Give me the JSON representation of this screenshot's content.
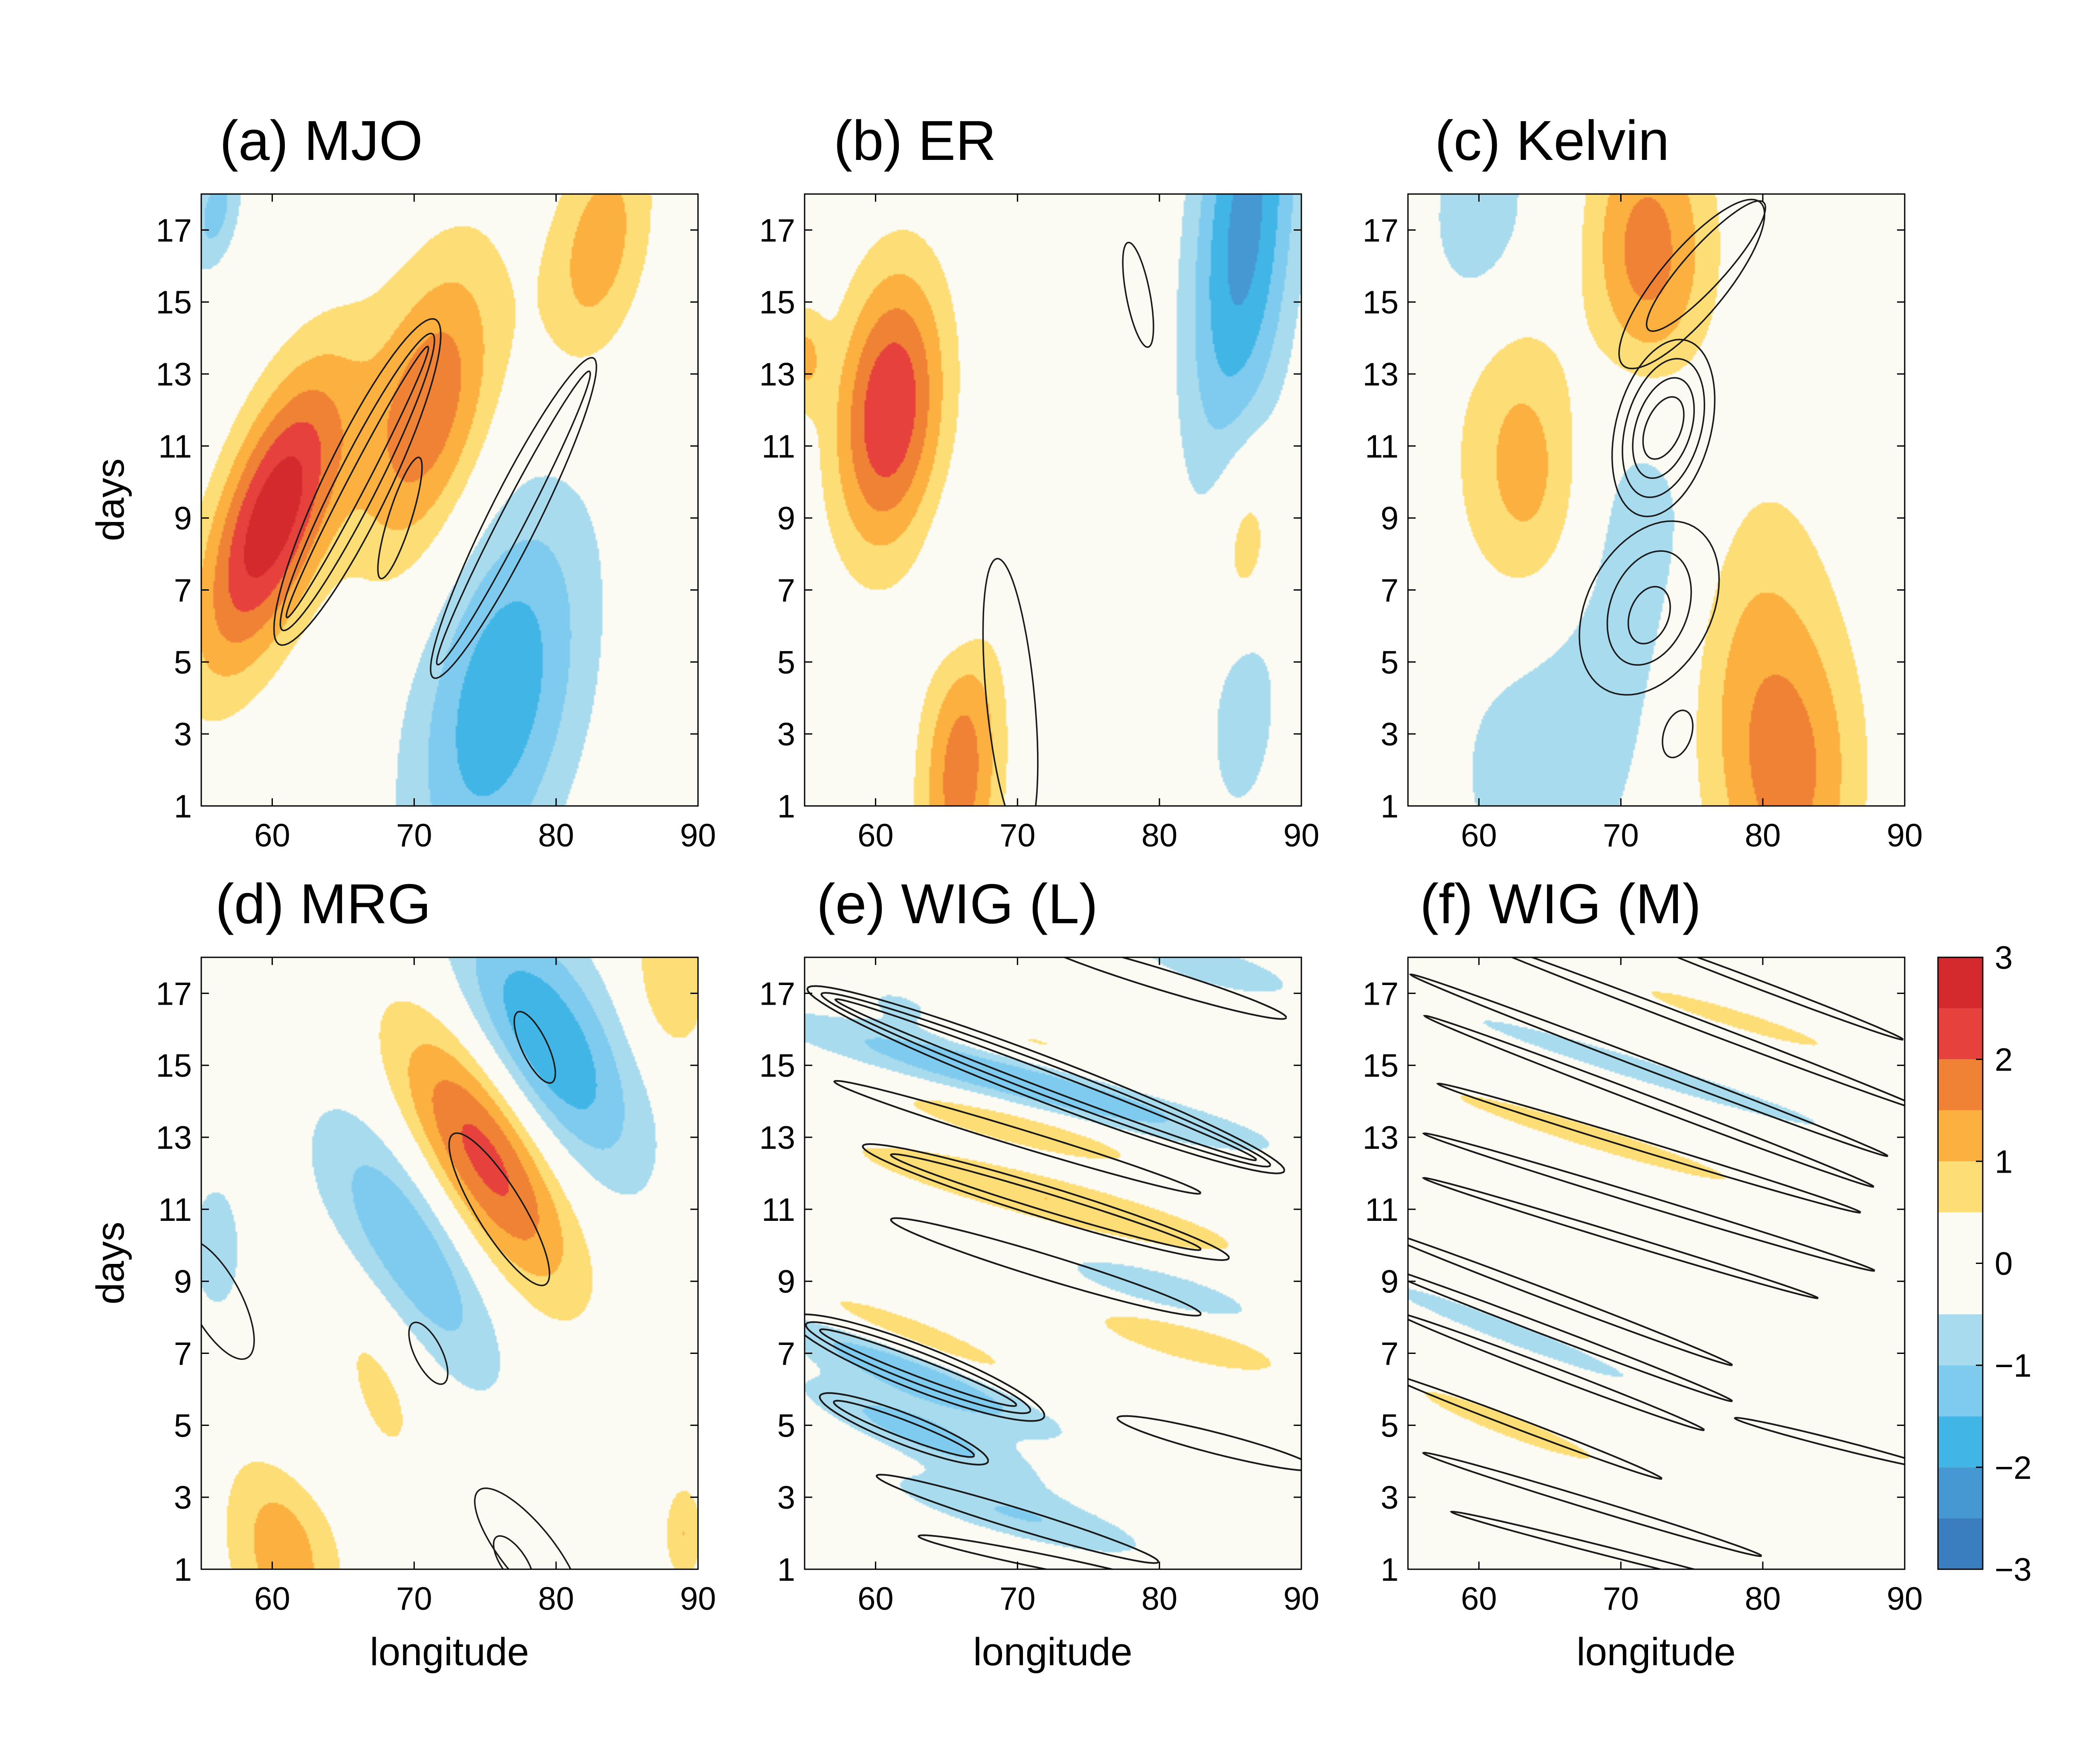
{
  "colorbar": {
    "ticks": [
      "3",
      "2",
      "1",
      "0",
      "−1",
      "−2",
      "−3"
    ],
    "levels": [
      -3,
      -2.5,
      -2,
      -1.5,
      -1,
      -0.5,
      0.5,
      1,
      1.5,
      2,
      2.5,
      3
    ],
    "colors": [
      "#3a7ebf",
      "#4598d2",
      "#41b6e6",
      "#7fcbef",
      "#a9dbee",
      "#fcfbf3",
      "#fddd76",
      "#fbb040",
      "#f08235",
      "#e6413d",
      "#d42a2e"
    ]
  },
  "chart_data": [
    {
      "type": "heatmap",
      "title": "(a) MJO",
      "xlabel": "",
      "ylabel": "days",
      "xlim": [
        55,
        90
      ],
      "ylim": [
        1,
        18
      ],
      "xticks": [
        "60",
        "70",
        "80",
        "90"
      ],
      "yticks": [
        "1",
        "3",
        "5",
        "7",
        "9",
        "11",
        "13",
        "15",
        "17"
      ],
      "field": {
        "blobs": [
          {
            "lon": 60,
            "day": 9,
            "amp": 2.9,
            "along": 8.5,
            "across": 4.0,
            "slope": 0.75
          },
          {
            "lon": 71,
            "day": 12,
            "amp": 1.9,
            "along": 8,
            "across": 5.0,
            "slope": 0.75
          },
          {
            "lon": 83,
            "day": 16.5,
            "amp": 1.3,
            "along": 6,
            "across": 4.0,
            "slope": 0.75
          },
          {
            "lon": 76,
            "day": 4,
            "amp": -1.9,
            "along": 10,
            "across": 6.5,
            "slope": 0.75
          },
          {
            "lon": 56,
            "day": 17.5,
            "amp": -1.2,
            "along": 3,
            "across": 2.0,
            "slope": 0.75
          }
        ],
        "contours": [
          {
            "lon": 66,
            "day": 10,
            "along": 12.5,
            "across": 0.9,
            "slope": 0.75
          },
          {
            "lon": 66,
            "day": 10,
            "along": 13.5,
            "across": 2.0,
            "slope": 0.75
          },
          {
            "lon": 66,
            "day": 10,
            "along": 14.5,
            "across": 3.2,
            "slope": 0.75
          },
          {
            "lon": 69,
            "day": 9,
            "along": 4.4,
            "across": 1.3,
            "slope": 1.1
          },
          {
            "lon": 77,
            "day": 9,
            "along": 13.5,
            "across": 1.2,
            "slope": 0.75
          },
          {
            "lon": 77,
            "day": 9,
            "along": 14.5,
            "across": 2.4,
            "slope": 0.75
          }
        ]
      }
    },
    {
      "type": "heatmap",
      "title": "(b) ER",
      "xlabel": "",
      "ylabel": "",
      "xlim": [
        55,
        90
      ],
      "ylim": [
        1,
        18
      ],
      "xticks": [
        "60",
        "70",
        "80",
        "90"
      ],
      "yticks": [
        "1",
        "3",
        "5",
        "7",
        "9",
        "11",
        "13",
        "15",
        "17"
      ],
      "field": {
        "blobs": [
          {
            "lon": 61,
            "day": 12,
            "amp": 2.5,
            "along": 5,
            "across": 6.0,
            "slope": -0.9
          },
          {
            "lon": 66,
            "day": 2,
            "amp": 1.8,
            "along": 4,
            "across": 6.0,
            "slope": -0.2
          },
          {
            "lon": 66,
            "day": 7,
            "amp": -0.6,
            "along": 3,
            "across": 4.0,
            "slope": -0.8
          },
          {
            "lon": 86,
            "day": 17,
            "amp": -2.2,
            "along": 5,
            "across": 10.0,
            "slope": -0.3
          },
          {
            "lon": 86,
            "day": 8.5,
            "amp": 1.0,
            "along": 3,
            "across": 4.0,
            "slope": -0.3
          },
          {
            "lon": 86,
            "day": 3.5,
            "amp": -1.0,
            "along": 3,
            "across": 4.0,
            "slope": -0.5
          },
          {
            "lon": 55,
            "day": 13.5,
            "amp": 1.0,
            "along": 2,
            "across": 2.0,
            "slope": -0.9
          }
        ],
        "contours": [
          {
            "lon": 78.5,
            "day": 15.2,
            "along": 3.3,
            "across": 1.5,
            "slope": -1.6
          },
          {
            "lon": 69.5,
            "day": 4,
            "along": 8,
            "across": 3.3,
            "slope": -3.5
          }
        ]
      }
    },
    {
      "type": "heatmap",
      "title": "(c) Kelvin",
      "xlabel": "",
      "ylabel": "",
      "xlim": [
        55,
        90
      ],
      "ylim": [
        1,
        18
      ],
      "xticks": [
        "60",
        "70",
        "80",
        "90"
      ],
      "yticks": [
        "1",
        "3",
        "5",
        "7",
        "9",
        "11",
        "13",
        "15",
        "17"
      ],
      "field": {
        "blobs": [
          {
            "lon": 71,
            "day": 15.8,
            "amp": 2.5,
            "along": 7,
            "across": 6.0,
            "slope": 0.2
          },
          {
            "lon": 68,
            "day": 13.5,
            "amp": -1.9,
            "along": 7,
            "across": 7.0,
            "slope": 0.2
          },
          {
            "lon": 65,
            "day": 10.8,
            "amp": 2.0,
            "along": 8,
            "across": 7.0,
            "slope": 0.25
          },
          {
            "lon": 72,
            "day": 8.3,
            "amp": -1.0,
            "along": 8,
            "across": 7.0,
            "slope": 0.25
          },
          {
            "lon": 78,
            "day": 6,
            "amp": 1.0,
            "along": 9,
            "across": 7.0,
            "slope": 0.2
          },
          {
            "lon": 65,
            "day": 3,
            "amp": -1.0,
            "along": 10,
            "across": 7.0,
            "slope": 0.15
          },
          {
            "lon": 82,
            "day": 1.5,
            "amp": 1.5,
            "along": 7,
            "across": 6.0,
            "slope": 0.15
          },
          {
            "lon": 60,
            "day": 17.4,
            "amp": -1.0,
            "along": 5,
            "across": 4.0,
            "slope": 0.2
          }
        ],
        "contours": [
          {
            "lon": 75,
            "day": 15.5,
            "along": 11,
            "across": 2.5,
            "slope": 0.4
          },
          {
            "lon": 76,
            "day": 16,
            "along": 9,
            "across": 1.5,
            "slope": 0.4
          },
          {
            "lon": 73,
            "day": 11.5,
            "along": 3,
            "across": 1.5,
            "slope": 0.35
          },
          {
            "lon": 73,
            "day": 11.5,
            "along": 4.5,
            "across": 2.5,
            "slope": 0.35
          },
          {
            "lon": 73,
            "day": 11.5,
            "along": 6,
            "across": 3.5,
            "slope": 0.35
          },
          {
            "lon": 73,
            "day": 11.5,
            "along": 7.5,
            "across": 4.5,
            "slope": 0.35
          },
          {
            "lon": 72,
            "day": 6.3,
            "along": 3,
            "across": 1.5,
            "slope": 0.2
          },
          {
            "lon": 72,
            "day": 6.5,
            "along": 6,
            "across": 3.0,
            "slope": 0.2
          },
          {
            "lon": 72,
            "day": 6.5,
            "along": 10,
            "across": 4.5,
            "slope": 0.2
          },
          {
            "lon": 74,
            "day": 3,
            "along": 2.2,
            "across": 1.2,
            "slope": 0.3
          }
        ]
      }
    },
    {
      "type": "heatmap",
      "title": "(d) MRG",
      "xlabel": "longitude",
      "ylabel": "days",
      "xlim": [
        55,
        90
      ],
      "ylim": [
        1,
        18
      ],
      "xticks": [
        "60",
        "70",
        "80",
        "90"
      ],
      "yticks": [
        "1",
        "3",
        "5",
        "7",
        "9",
        "11",
        "13",
        "15",
        "17"
      ],
      "field": {
        "blobs": [
          {
            "lon": 75,
            "day": 12.5,
            "amp": 2.8,
            "along": 10,
            "across": 4.5,
            "slope": -0.4
          },
          {
            "lon": 79,
            "day": 15.3,
            "amp": -2.3,
            "along": 10,
            "across": 4.5,
            "slope": -0.4
          },
          {
            "lon": 70,
            "day": 10,
            "amp": -2.0,
            "along": 10,
            "across": 4.5,
            "slope": -0.4
          },
          {
            "lon": 67,
            "day": 7,
            "amp": 1.0,
            "along": 8,
            "across": 4.5,
            "slope": -0.4
          },
          {
            "lon": 62,
            "day": 5,
            "amp": -1.0,
            "along": 6,
            "across": 4.5,
            "slope": -0.4
          },
          {
            "lon": 61,
            "day": 2,
            "amp": 1.6,
            "along": 6,
            "across": 4.5,
            "slope": -0.35
          },
          {
            "lon": 88,
            "day": 17.3,
            "amp": 1.0,
            "along": 4,
            "across": 3.0,
            "slope": -0.3
          },
          {
            "lon": 56,
            "day": 10,
            "amp": -0.8,
            "along": 3,
            "across": 3.0,
            "slope": -0.4
          },
          {
            "lon": 89,
            "day": 2,
            "amp": 1.0,
            "along": 2,
            "across": 2.0,
            "slope": 0
          }
        ],
        "contours": [
          {
            "lon": 78.5,
            "day": 15.5,
            "along": 3.3,
            "across": 1.2,
            "slope": -0.6
          },
          {
            "lon": 76,
            "day": 11,
            "along": 8,
            "across": 2.0,
            "slope": -0.55
          },
          {
            "lon": 71,
            "day": 7,
            "along": 3,
            "across": 1.2,
            "slope": -0.5
          },
          {
            "lon": 56,
            "day": 8.5,
            "along": 6,
            "across": 2.2,
            "slope": -0.5
          },
          {
            "lon": 78,
            "day": 1.5,
            "along": 8,
            "across": 2.0,
            "slope": -0.4
          },
          {
            "lon": 77,
            "day": 1.2,
            "along": 3,
            "across": 1.0,
            "slope": -0.4
          }
        ]
      }
    },
    {
      "type": "heatmap",
      "title": "(e) WIG (L)",
      "xlabel": "longitude",
      "ylabel": "",
      "xlim": [
        55,
        90
      ],
      "ylim": [
        1,
        18
      ],
      "xticks": [
        "60",
        "70",
        "80",
        "90"
      ],
      "yticks": [
        "1",
        "3",
        "5",
        "7",
        "9",
        "11",
        "13",
        "15",
        "17"
      ],
      "field": {
        "blobs": [
          {
            "lon": 70,
            "day": 14.7,
            "amp": -1.7,
            "along": 24,
            "across": 1.2,
            "slope": -0.1
          },
          {
            "lon": 70,
            "day": 15.5,
            "amp": 1.0,
            "along": 22,
            "across": 1.0,
            "slope": -0.1
          },
          {
            "lon": 72,
            "day": 11.3,
            "amp": 1.0,
            "along": 22,
            "across": 1.0,
            "slope": -0.1
          },
          {
            "lon": 63,
            "day": 6.5,
            "amp": -1.7,
            "along": 14,
            "across": 1.2,
            "slope": -0.15
          },
          {
            "lon": 63,
            "day": 7.3,
            "amp": 1.2,
            "along": 14,
            "across": 1.0,
            "slope": -0.15
          },
          {
            "lon": 63,
            "day": 4.8,
            "amp": -1.2,
            "along": 12,
            "across": 1.0,
            "slope": -0.15
          },
          {
            "lon": 70,
            "day": 2.5,
            "amp": -1.0,
            "along": 14,
            "across": 1.0,
            "slope": -0.1
          },
          {
            "lon": 70,
            "day": 13.3,
            "amp": 1.0,
            "along": 14,
            "across": 0.8,
            "slope": -0.1
          },
          {
            "lon": 80,
            "day": 8.8,
            "amp": -1.0,
            "along": 10,
            "across": 0.8,
            "slope": -0.1
          },
          {
            "lon": 84,
            "day": 17.7,
            "amp": -1.0,
            "along": 8,
            "across": 0.8,
            "slope": -0.1
          },
          {
            "lon": 62,
            "day": 16.6,
            "amp": -1.0,
            "along": 6,
            "across": 0.8,
            "slope": -0.1
          },
          {
            "lon": 82,
            "day": 7.3,
            "amp": 1.0,
            "along": 10,
            "across": 0.8,
            "slope": -0.1
          }
        ],
        "contours": [
          {
            "lon": 72,
            "day": 14.6,
            "along": 30,
            "across": 0.5,
            "slope": -0.15
          },
          {
            "lon": 72,
            "day": 14.6,
            "along": 32,
            "across": 0.9,
            "slope": -0.15
          },
          {
            "lon": 72,
            "day": 14.6,
            "along": 34,
            "across": 1.3,
            "slope": -0.15
          },
          {
            "lon": 72,
            "day": 11.2,
            "along": 22,
            "across": 0.5,
            "slope": -0.12
          },
          {
            "lon": 72,
            "day": 11.2,
            "along": 26,
            "across": 0.9,
            "slope": -0.12
          },
          {
            "lon": 63,
            "day": 6.6,
            "along": 14,
            "across": 0.5,
            "slope": -0.15
          },
          {
            "lon": 63,
            "day": 6.6,
            "along": 16,
            "across": 0.9,
            "slope": -0.15
          },
          {
            "lon": 63,
            "day": 6.6,
            "along": 18,
            "across": 1.3,
            "slope": -0.15
          },
          {
            "lon": 62,
            "day": 4.9,
            "along": 10,
            "across": 0.5,
            "slope": -0.15
          },
          {
            "lon": 62,
            "day": 4.9,
            "along": 12,
            "across": 0.9,
            "slope": -0.15
          },
          {
            "lon": 70,
            "day": 2.4,
            "along": 20,
            "across": 0.6,
            "slope": -0.12
          },
          {
            "lon": 80,
            "day": 17.4,
            "along": 18,
            "across": 0.6,
            "slope": -0.12
          },
          {
            "lon": 72,
            "day": 9.4,
            "along": 22,
            "across": 0.7,
            "slope": -0.12
          },
          {
            "lon": 84,
            "day": 4.5,
            "along": 14,
            "across": 0.6,
            "slope": -0.1
          },
          {
            "lon": 70,
            "day": 13.0,
            "along": 26,
            "across": 0.5,
            "slope": -0.12
          },
          {
            "lon": 72,
            "day": 1.2,
            "along": 18,
            "across": 0.4,
            "slope": -0.08
          }
        ]
      }
    },
    {
      "type": "heatmap",
      "title": "(f) WIG (M)",
      "xlabel": "longitude",
      "ylabel": "",
      "xlim": [
        55,
        90
      ],
      "ylim": [
        1,
        18
      ],
      "xticks": [
        "60",
        "70",
        "80",
        "90"
      ],
      "yticks": [
        "1",
        "3",
        "5",
        "7",
        "9",
        "11",
        "13",
        "15",
        "17"
      ],
      "field": {
        "blobs": [
          {
            "lon": 72,
            "day": 14.8,
            "amp": -1.0,
            "along": 20,
            "across": 0.5,
            "slope": -0.12
          },
          {
            "lon": 68,
            "day": 13.0,
            "amp": 1.0,
            "along": 16,
            "across": 0.5,
            "slope": -0.12
          },
          {
            "lon": 62,
            "day": 7.6,
            "amp": -1.0,
            "along": 14,
            "across": 0.5,
            "slope": -0.15
          },
          {
            "lon": 62,
            "day": 5.0,
            "amp": 1.0,
            "along": 10,
            "across": 0.5,
            "slope": -0.15
          },
          {
            "lon": 78,
            "day": 16.3,
            "amp": 1.0,
            "along": 10,
            "across": 0.4,
            "slope": -0.12
          }
        ],
        "contours": [
          {
            "lon": 80,
            "day": 17.2,
            "along": 20,
            "across": 0.25,
            "slope": -0.15
          },
          {
            "lon": 75,
            "day": 16.2,
            "along": 34,
            "across": 0.3,
            "slope": -0.15
          },
          {
            "lon": 72,
            "day": 15.0,
            "along": 34,
            "across": 0.3,
            "slope": -0.15
          },
          {
            "lon": 72,
            "day": 14.0,
            "along": 32,
            "across": 0.3,
            "slope": -0.15
          },
          {
            "lon": 72,
            "day": 12.7,
            "along": 30,
            "across": 0.3,
            "slope": -0.12
          },
          {
            "lon": 72,
            "day": 11.2,
            "along": 32,
            "across": 0.3,
            "slope": -0.12
          },
          {
            "lon": 70,
            "day": 10.2,
            "along": 28,
            "across": 0.25,
            "slope": -0.12
          },
          {
            "lon": 65,
            "day": 8.6,
            "along": 26,
            "across": 0.3,
            "slope": -0.15
          },
          {
            "lon": 65,
            "day": 7.6,
            "along": 26,
            "across": 0.3,
            "slope": -0.15
          },
          {
            "lon": 65,
            "day": 6.5,
            "along": 22,
            "across": 0.3,
            "slope": -0.15
          },
          {
            "lon": 63,
            "day": 5.0,
            "along": 20,
            "across": 0.3,
            "slope": -0.15
          },
          {
            "lon": 68,
            "day": 2.8,
            "along": 24,
            "across": 0.3,
            "slope": -0.12
          },
          {
            "lon": 70,
            "day": 1.4,
            "along": 24,
            "across": 0.25,
            "slope": -0.1
          },
          {
            "lon": 85,
            "day": 4.5,
            "along": 14,
            "across": 0.25,
            "slope": -0.1
          }
        ]
      }
    }
  ]
}
